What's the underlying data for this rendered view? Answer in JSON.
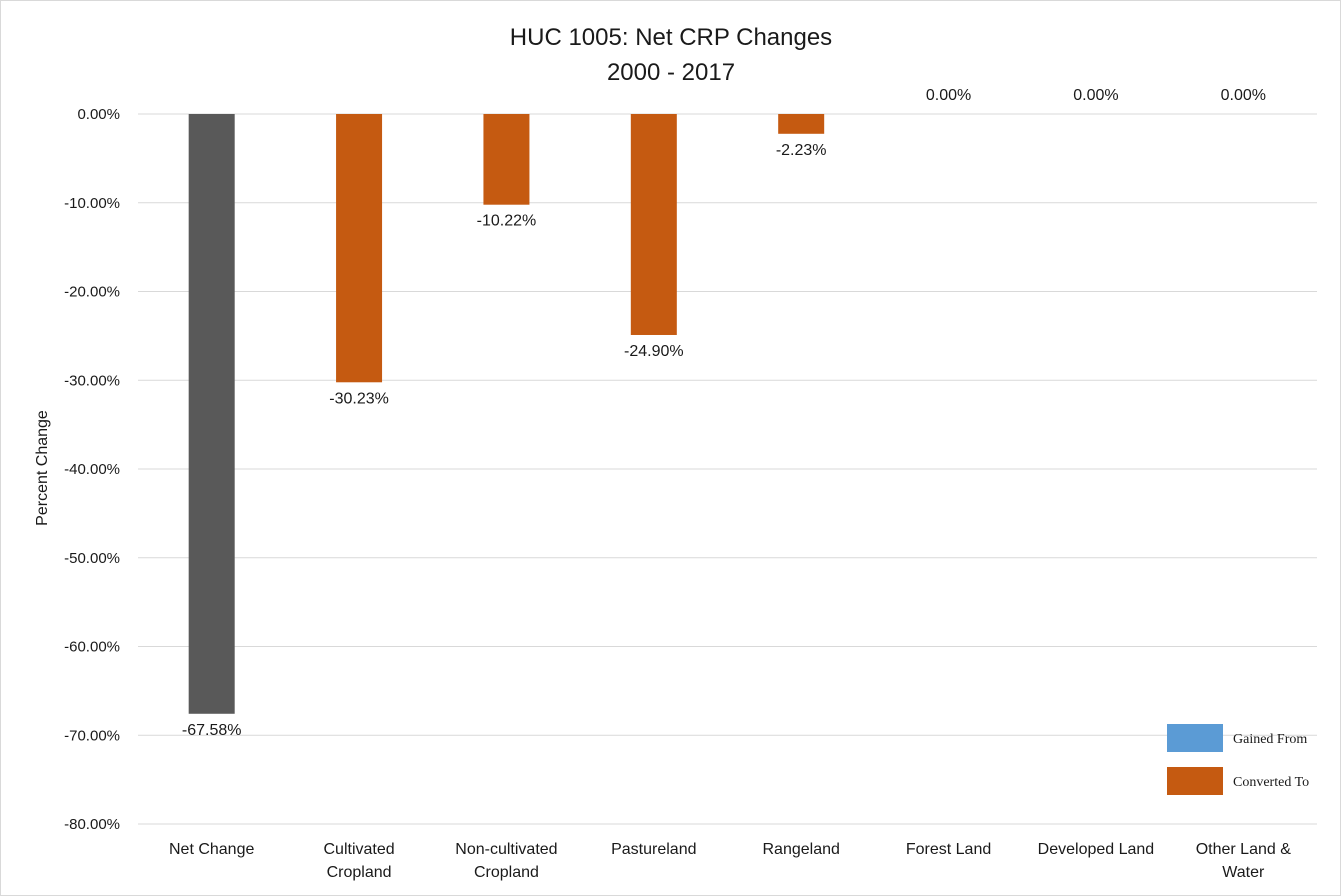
{
  "chart_data": {
    "type": "bar",
    "title_lines": [
      "HUC 1005: Net CRP Changes",
      "2000 - 2017"
    ],
    "ylabel": "Percent Change",
    "xlabel": "",
    "ylim": [
      -80,
      0
    ],
    "yticks": [
      0,
      -10,
      -20,
      -30,
      -40,
      -50,
      -60,
      -70,
      -80
    ],
    "ytick_labels": [
      "0.00%",
      "-10.00%",
      "-20.00%",
      "-30.00%",
      "-40.00%",
      "-50.00%",
      "-60.00%",
      "-70.00%",
      "-80.00%"
    ],
    "grid": true,
    "legend_position": "bottom-right",
    "categories": [
      [
        "Net Change"
      ],
      [
        "Cultivated",
        "Cropland"
      ],
      [
        "Non-cultivated",
        "Cropland"
      ],
      [
        "Pastureland"
      ],
      [
        "Rangeland"
      ],
      [
        "Forest Land"
      ],
      [
        "Developed Land"
      ],
      [
        "Other Land &",
        "Water"
      ]
    ],
    "values": [
      -67.58,
      -30.23,
      -10.22,
      -24.9,
      -2.23,
      0,
      0,
      0
    ],
    "data_labels": [
      "-67.58%",
      "-30.23%",
      "-10.22%",
      "-24.90%",
      "-2.23%",
      "0.00%",
      "0.00%",
      "0.00%"
    ],
    "bar_series": [
      "net",
      "converted",
      "converted",
      "converted",
      "converted",
      "converted",
      "converted",
      "converted"
    ],
    "series": [
      {
        "name": "Gained From",
        "color": "#5b9bd5"
      },
      {
        "name": "Converted To",
        "color": "#c55a11"
      }
    ],
    "net_color": "#595959",
    "grid_color": "#d9d9d9"
  }
}
